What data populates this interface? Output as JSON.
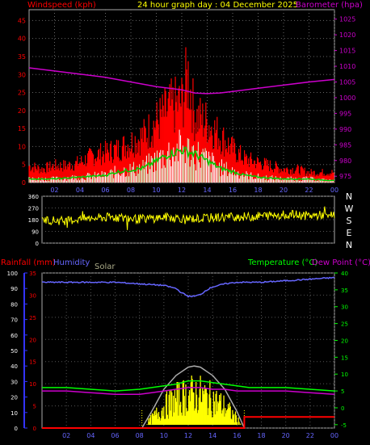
{
  "header": {
    "wind_label": "Windspeed (kph)",
    "title": "24 hour graph day : 04 December 2025",
    "baro_label": "Barometer (hpa)"
  },
  "wind_panel": {
    "y_ticks": [
      "0",
      "5",
      "10",
      "15",
      "20",
      "25",
      "30",
      "35",
      "40",
      "45"
    ],
    "baro_ticks": [
      "975",
      "980",
      "985",
      "990",
      "995",
      "1000",
      "1005",
      "1010",
      "1015",
      "1020",
      "1025"
    ],
    "x_ticks": [
      "02",
      "04",
      "06",
      "08",
      "10",
      "12",
      "14",
      "16",
      "18",
      "20",
      "22",
      "00"
    ]
  },
  "dir_panel": {
    "y_ticks": [
      "0",
      "90",
      "180",
      "270",
      "360"
    ],
    "compass": [
      "N",
      "W",
      "S",
      "E",
      "N"
    ]
  },
  "bottom_panel": {
    "rain_label": "Rainfall (mm)",
    "humidity_label": "Humidity",
    "solar_label": "Solar",
    "temp_label": "Temperature (°C)",
    "dew_label": "Dew Point (°C)",
    "humidity_ticks": [
      "0",
      "10",
      "20",
      "30",
      "40",
      "50",
      "60",
      "70",
      "80",
      "90",
      "100"
    ],
    "rain_ticks": [
      "0",
      "5",
      "10",
      "15",
      "20",
      "25",
      "30",
      "35"
    ],
    "temp_ticks": [
      "-5",
      "0",
      "5",
      "10",
      "15",
      "20",
      "25",
      "30",
      "35",
      "40"
    ],
    "x_ticks": [
      "02",
      "04",
      "06",
      "08",
      "10",
      "12",
      "14",
      "16",
      "18",
      "20",
      "22",
      "00"
    ]
  },
  "chart_data": [
    {
      "type": "line",
      "x_unit": "hour",
      "xlim": [
        0,
        24
      ],
      "ylim": [
        0,
        48
      ],
      "y2lim": [
        973,
        1028
      ],
      "series": [
        {
          "name": "Windspeed (kph)",
          "color": "#ff0000",
          "x": [
            0,
            1,
            2,
            3,
            4,
            5,
            6,
            7,
            8,
            9,
            10,
            11,
            12,
            12.5,
            13,
            14,
            15,
            16,
            17,
            18,
            19,
            20,
            21,
            22,
            23,
            24
          ],
          "y": [
            5,
            4,
            5,
            5,
            6,
            8,
            9,
            10,
            12,
            14,
            18,
            22,
            24,
            32,
            20,
            18,
            14,
            10,
            7,
            6,
            5,
            4,
            4,
            3,
            3,
            3
          ]
        },
        {
          "name": "Average",
          "color": "#00cc00",
          "x": [
            0,
            2,
            4,
            6,
            7,
            8,
            9,
            10,
            11,
            12,
            13,
            14,
            15,
            16,
            17,
            18,
            20,
            22,
            24
          ],
          "y": [
            1,
            1,
            1.5,
            2,
            3,
            3.5,
            4,
            6,
            8,
            9,
            8,
            6,
            4,
            3,
            2,
            1.5,
            1,
            1,
            0.5
          ]
        },
        {
          "name": "Barometer (hpa)",
          "color": "#cc00cc",
          "x": [
            0,
            2,
            4,
            6,
            8,
            10,
            12,
            13,
            14,
            15,
            16,
            18,
            20,
            22,
            24
          ],
          "y": [
            1009.5,
            1008.5,
            1007.5,
            1006.5,
            1005,
            1003.5,
            1002.5,
            1001.5,
            1001.3,
            1001.5,
            1002,
            1003,
            1004,
            1005,
            1005.8
          ]
        }
      ]
    },
    {
      "type": "line",
      "x_unit": "hour",
      "xlim": [
        0,
        24
      ],
      "ylim": [
        0,
        360
      ],
      "series": [
        {
          "name": "Wind direction",
          "color": "#ffff00",
          "x": [
            0,
            1,
            2,
            3,
            4,
            5,
            6,
            7,
            8,
            9,
            10,
            11,
            12,
            13,
            14,
            15,
            16,
            17,
            18,
            19,
            20,
            21,
            22,
            23,
            24
          ],
          "y": [
            180,
            175,
            170,
            185,
            190,
            195,
            200,
            190,
            185,
            190,
            200,
            195,
            185,
            190,
            195,
            200,
            205,
            200,
            210,
            215,
            220,
            215,
            210,
            215,
            220
          ]
        }
      ]
    },
    {
      "type": "line",
      "x_unit": "hour",
      "xlim": [
        0,
        24
      ],
      "ylim": [
        0,
        100
      ],
      "rain_lim": [
        0,
        35
      ],
      "temp_lim": [
        -6,
        40
      ],
      "series": [
        {
          "name": "Humidity",
          "color": "#6666ff",
          "x": [
            0,
            2,
            4,
            6,
            8,
            10,
            11,
            11.5,
            12,
            12.5,
            13,
            13.5,
            14,
            15,
            16,
            18,
            20,
            22,
            24
          ],
          "y": [
            94,
            94,
            94,
            94,
            93,
            92,
            90,
            87,
            85,
            85,
            86,
            89,
            91,
            93,
            94,
            94,
            95,
            96,
            97
          ]
        },
        {
          "name": "Temperature (°C)",
          "color": "#00ff00",
          "x": [
            0,
            2,
            4,
            6,
            8,
            9,
            10,
            11,
            12,
            13,
            14,
            15,
            16,
            17,
            18,
            20,
            22,
            24
          ],
          "y": [
            6,
            6,
            5.5,
            5,
            5.5,
            6,
            6.5,
            7,
            8,
            8,
            7.5,
            7,
            6.5,
            6,
            6,
            6,
            5.5,
            5
          ]
        },
        {
          "name": "Dew Point (°C)",
          "color": "#cc00cc",
          "x": [
            0,
            2,
            4,
            6,
            8,
            9,
            10,
            11,
            12,
            13,
            14,
            15,
            16,
            17,
            18,
            20,
            22,
            24
          ],
          "y": [
            5,
            5,
            4.5,
            4,
            4,
            4.5,
            5,
            5.5,
            6,
            6,
            5.5,
            5.5,
            5,
            5,
            5,
            5,
            4.5,
            4
          ]
        },
        {
          "name": "Solar",
          "color": "#aaaaaa",
          "x": [
            8.2,
            9,
            10,
            11,
            12,
            12.5,
            13,
            14,
            15,
            16,
            16.6
          ],
          "y": [
            0,
            3,
            7,
            9.5,
            11,
            11.2,
            11,
            9.5,
            7,
            3,
            0
          ]
        },
        {
          "name": "Rainfall (mm)",
          "color": "#ff0000",
          "x": [
            0,
            16.6,
            16.6,
            24
          ],
          "y": [
            0,
            0,
            2.5,
            2.5
          ]
        }
      ]
    }
  ]
}
